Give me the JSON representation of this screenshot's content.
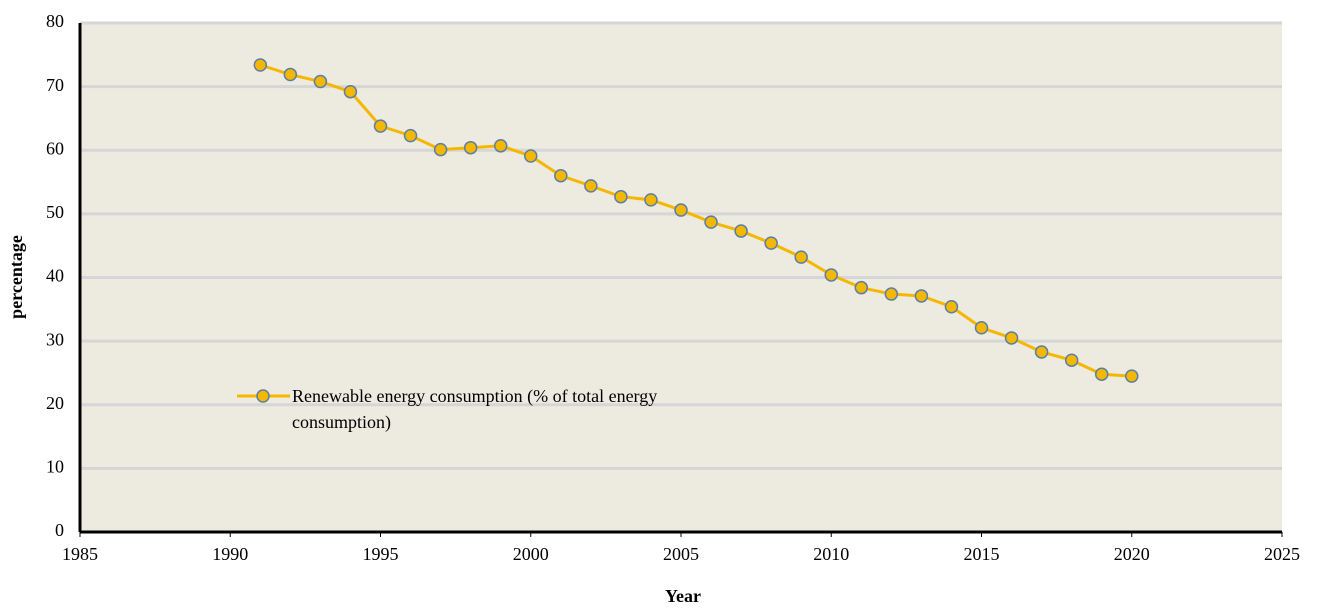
{
  "chart_data": {
    "type": "line",
    "x_label": "Year",
    "y_label": "percentage",
    "x": [
      1991,
      1992,
      1993,
      1994,
      1995,
      1996,
      1997,
      1998,
      1999,
      2000,
      2001,
      2002,
      2003,
      2004,
      2005,
      2006,
      2007,
      2008,
      2009,
      2010,
      2011,
      2012,
      2013,
      2014,
      2015,
      2016,
      2017,
      2018,
      2019,
      2020
    ],
    "series": [
      {
        "name": "Renewable energy consumption (% of total energy consumption)",
        "color": "#f5b800",
        "marker_edge": "#5b7fa6",
        "values": [
          73.4,
          71.9,
          70.8,
          69.2,
          63.8,
          62.3,
          60.1,
          60.4,
          60.7,
          59.1,
          56.0,
          54.4,
          52.7,
          52.2,
          50.6,
          48.7,
          47.3,
          45.4,
          43.2,
          40.4,
          38.4,
          37.4,
          37.1,
          35.4,
          32.1,
          30.5,
          28.3,
          27.0,
          24.8,
          24.5
        ]
      }
    ],
    "xlim": [
      1985,
      2025
    ],
    "xticks": [
      1985,
      1990,
      1995,
      2000,
      2005,
      2010,
      2015,
      2020,
      2025
    ],
    "ylim": [
      0,
      80
    ],
    "yticks": [
      0,
      10,
      20,
      30,
      40,
      50,
      60,
      70,
      80
    ],
    "grid": true,
    "background": "#edeae0"
  }
}
